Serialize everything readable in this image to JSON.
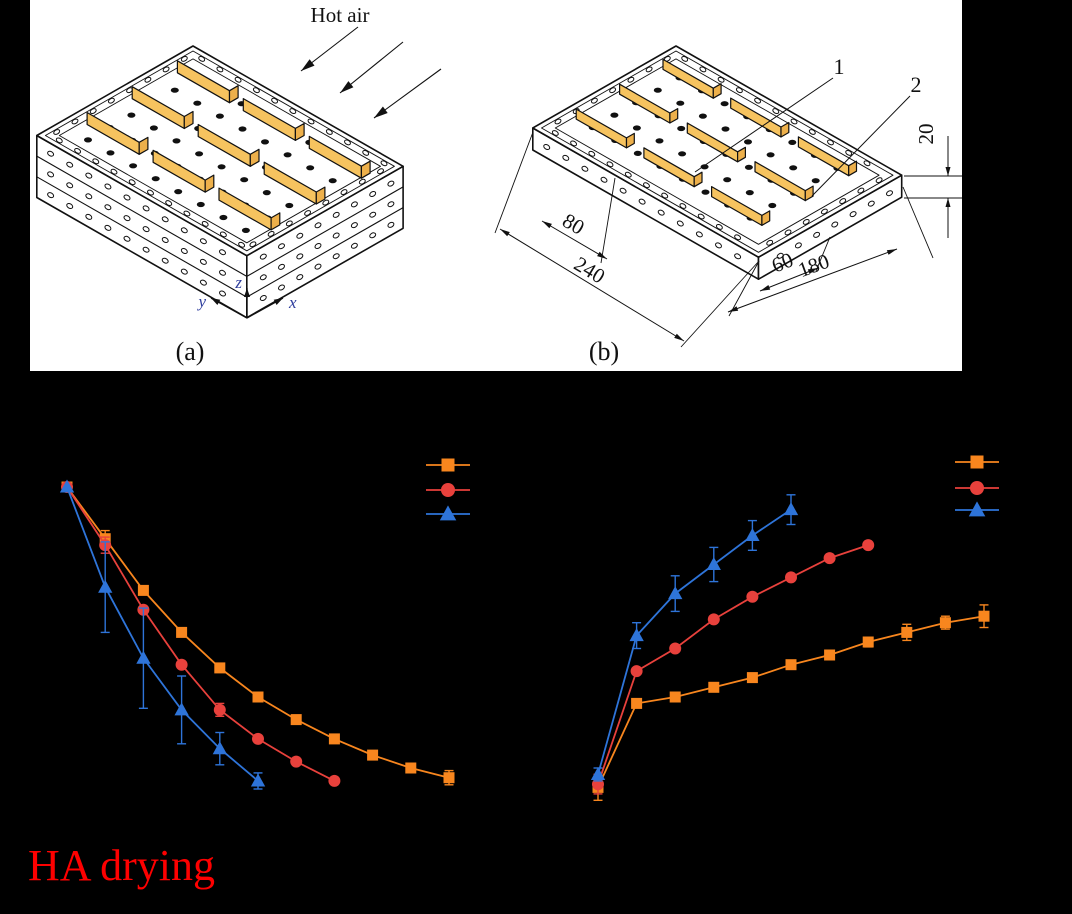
{
  "page": {
    "background": "#000000"
  },
  "diagram_panel": {
    "background": "#ffffff",
    "hot_air_label": "Hot air",
    "panel_a_label": "(a)",
    "panel_b_label": "(b)",
    "axes": {
      "x": "x",
      "y": "y",
      "z": "z"
    },
    "callouts": {
      "c1": "1",
      "c2": "2"
    },
    "dimensions": {
      "d80": "80",
      "d240": "240",
      "d60": "60",
      "d180": "180",
      "d20": "20"
    },
    "sample_side_color": "#f6c35f",
    "sample_top_color": "#fbd98e",
    "sample_end_color": "#edb04b",
    "line_color": "#111111"
  },
  "caption": {
    "text": "HA drying",
    "color": "#fe0000"
  },
  "chart_data": [
    {
      "id": "left-drying-curves",
      "type": "line",
      "title": "",
      "xlabel": "",
      "ylabel": "",
      "axes_visible": false,
      "grid": false,
      "legend": {
        "position": "top-right",
        "labels_visible": false
      },
      "x": [
        0,
        1,
        2,
        3,
        4,
        5,
        6,
        7,
        8,
        9,
        10
      ],
      "series": [
        {
          "name": "orange-squares",
          "marker": "square",
          "color": "#f8861e",
          "values": [
            1.0,
            0.84,
            0.68,
            0.55,
            0.44,
            0.35,
            0.28,
            0.22,
            0.17,
            0.13,
            0.1
          ],
          "errors": [
            0,
            0.025,
            0,
            0,
            0,
            0,
            0,
            0,
            0,
            0,
            0.022
          ]
        },
        {
          "name": "red-circles",
          "marker": "circle",
          "color": "#e8413c",
          "values": [
            1.0,
            0.82,
            0.62,
            0.45,
            0.31,
            0.22,
            0.15,
            0.09
          ],
          "errors": [
            0,
            0.025,
            0,
            0,
            0.02,
            0,
            0,
            0
          ]
        },
        {
          "name": "blue-triangles",
          "marker": "triangle",
          "color": "#2e74d9",
          "values": [
            1.0,
            0.69,
            0.47,
            0.31,
            0.19,
            0.09
          ],
          "errors": [
            0,
            0.14,
            0.155,
            0.105,
            0.05,
            0.025
          ]
        }
      ]
    },
    {
      "id": "right-rising-curves",
      "type": "line",
      "title": "",
      "xlabel": "",
      "ylabel": "",
      "axes_visible": false,
      "grid": false,
      "legend": {
        "position": "top-right",
        "labels_visible": false
      },
      "x": [
        0,
        1,
        2,
        3,
        4,
        5,
        6,
        7,
        8,
        9,
        10
      ],
      "series": [
        {
          "name": "orange-squares",
          "marker": "square",
          "color": "#f8861e",
          "values": [
            0.07,
            0.33,
            0.35,
            0.38,
            0.41,
            0.45,
            0.48,
            0.52,
            0.55,
            0.58,
            0.6
          ],
          "errors": [
            0.04,
            0,
            0,
            0,
            0,
            0,
            0,
            0.015,
            0.025,
            0.02,
            0.035
          ]
        },
        {
          "name": "red-circles",
          "marker": "circle",
          "color": "#e8413c",
          "values": [
            0.08,
            0.43,
            0.5,
            0.59,
            0.66,
            0.72,
            0.78,
            0.82
          ],
          "errors": [
            0.03,
            0,
            0,
            0,
            0,
            0,
            0,
            0
          ]
        },
        {
          "name": "blue-triangles",
          "marker": "triangle",
          "color": "#2e74d9",
          "values": [
            0.11,
            0.54,
            0.67,
            0.76,
            0.85,
            0.93
          ],
          "errors": [
            0.02,
            0.04,
            0.055,
            0.053,
            0.046,
            0.046
          ]
        }
      ]
    }
  ]
}
